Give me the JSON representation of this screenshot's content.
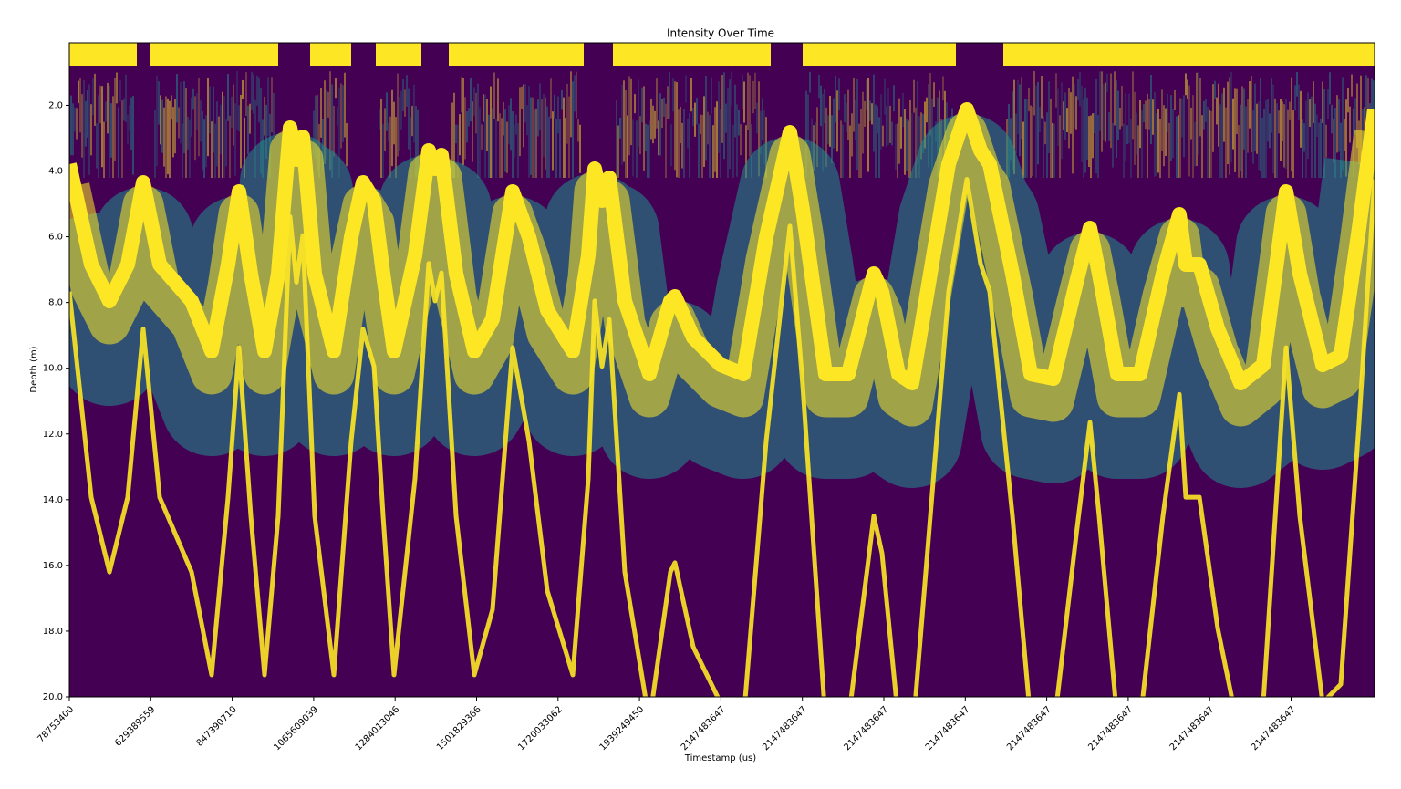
{
  "chart_data": {
    "type": "heatmap",
    "title": "Intensity Over Time",
    "x_label": "Timestamp (us)",
    "y_label": "Depth (m)",
    "categories": [
      "78753400",
      "629389559",
      "847390710",
      "1065609039",
      "1284013046",
      "1501829366",
      "1720033062",
      "1939249450",
      "2147483647",
      "2147483647",
      "2147483647",
      "2147483647",
      "2147483647",
      "2147483647",
      "2147483647",
      "2147483647"
    ],
    "ylim": [
      20,
      0.1
    ],
    "yticks": [
      {
        "value": 2,
        "label": "2.0"
      },
      {
        "value": 4,
        "label": "4.0"
      },
      {
        "value": 6,
        "label": "6.0"
      },
      {
        "value": 8,
        "label": "8.0"
      },
      {
        "value": 10,
        "label": "10.0"
      },
      {
        "value": 12,
        "label": "12.0"
      },
      {
        "value": 14,
        "label": "14.0"
      },
      {
        "value": 16,
        "label": "16.0"
      },
      {
        "value": 18,
        "label": "18.0"
      },
      {
        "value": 20,
        "label": "20.0"
      }
    ],
    "colors": [
      "#440154",
      "#21918c",
      "#fde725"
    ]
  }
}
